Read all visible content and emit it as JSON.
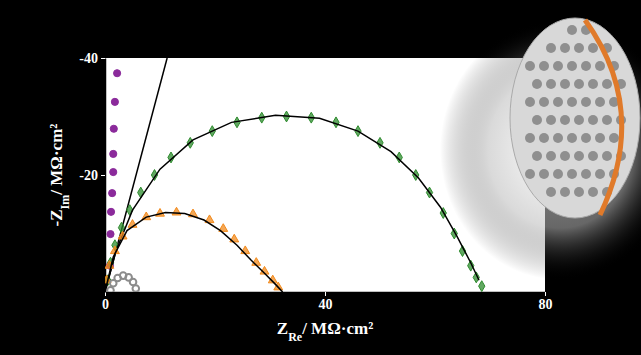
{
  "chart_data": {
    "type": "scatter",
    "xlabel": {
      "main": "Z",
      "sub": "Re",
      "unit": "/ MΩ·cm²"
    },
    "ylabel": {
      "main": "-Z",
      "sub": "Im",
      "unit": "/ MΩ·cm²"
    },
    "xlim": [
      0,
      80
    ],
    "xticks": [
      0,
      40,
      80
    ],
    "ylim": [
      0,
      -40
    ],
    "yticks": [
      -40,
      -20
    ],
    "grid": false,
    "series": [
      {
        "type": "scatter",
        "color": "#8b2a9b",
        "marker": "circle",
        "x": [
          0.9,
          1.0,
          1.1,
          1.3,
          1.5,
          1.5,
          1.6,
          1.8,
          2.2
        ],
        "values": [
          -4.5,
          -9.9,
          -13.7,
          -16.9,
          -20.5,
          -23.6,
          -27.9,
          -32.5,
          -37.4
        ]
      },
      {
        "type": "line",
        "color": "#000000",
        "line_style": "solid",
        "x": [
          0,
          11.3
        ],
        "values": [
          0,
          -40
        ]
      },
      {
        "type": "scatter",
        "color": "#2e8b2e",
        "marker": "diamond",
        "x": [
          0.5,
          1,
          1.8,
          3,
          4.5,
          6.5,
          9,
          12,
          15.5,
          19.5,
          24,
          28.5,
          33,
          37.5,
          42,
          46,
          50,
          53.5,
          56.5,
          59,
          61.5,
          63.5,
          65,
          66.5,
          67.5,
          68.5
        ],
        "values": [
          -2,
          -5,
          -8,
          -11,
          -14,
          -17,
          -20,
          -23,
          -25.5,
          -27.5,
          -29,
          -29.8,
          -30,
          -29.8,
          -29,
          -27.5,
          -25.5,
          -23,
          -20,
          -17,
          -13.5,
          -10,
          -7,
          -4.5,
          -2.5,
          -1
        ]
      },
      {
        "type": "line",
        "color": "#000000",
        "line_style": "solid",
        "x": [
          0,
          2,
          5,
          10,
          16,
          23,
          31,
          39,
          46,
          52,
          57,
          61,
          64,
          66.5,
          68
        ],
        "values": [
          0,
          -7,
          -14,
          -21,
          -26,
          -29,
          -30.2,
          -29.7,
          -27.5,
          -24,
          -19.5,
          -14.5,
          -9.5,
          -5,
          -2
        ]
      },
      {
        "type": "scatter",
        "color": "#f28a1c",
        "marker": "triangle",
        "x": [
          0.3,
          0.8,
          1.8,
          3.2,
          5,
          7.5,
          10,
          13,
          16,
          19,
          21.5,
          23.5,
          25.5,
          27.5,
          29,
          30.5,
          31.5
        ],
        "values": [
          -2,
          -4.5,
          -7,
          -9.5,
          -11.5,
          -12.8,
          -13.4,
          -13.6,
          -13.3,
          -12.3,
          -10.8,
          -9,
          -7,
          -5,
          -3.5,
          -2,
          -0.8
        ]
      },
      {
        "type": "line",
        "color": "#000000",
        "line_style": "solid",
        "x": [
          0,
          1.5,
          4,
          7.5,
          11,
          14.5,
          18,
          21,
          24,
          26.5,
          29,
          31,
          32.3
        ],
        "values": [
          0,
          -6,
          -10.5,
          -12.8,
          -13.6,
          -13.4,
          -12.3,
          -10.5,
          -8,
          -5.5,
          -3.2,
          -1.3,
          0
        ]
      },
      {
        "type": "scatter",
        "color": "#8c8c8c",
        "marker": "circle-open",
        "x": [
          1,
          1.5,
          2.3,
          3.3,
          4.3,
          5.1,
          5.6
        ],
        "values": [
          -0.3,
          -1.5,
          -2.4,
          -2.8,
          -2.5,
          -1.7,
          -0.6
        ]
      }
    ]
  }
}
